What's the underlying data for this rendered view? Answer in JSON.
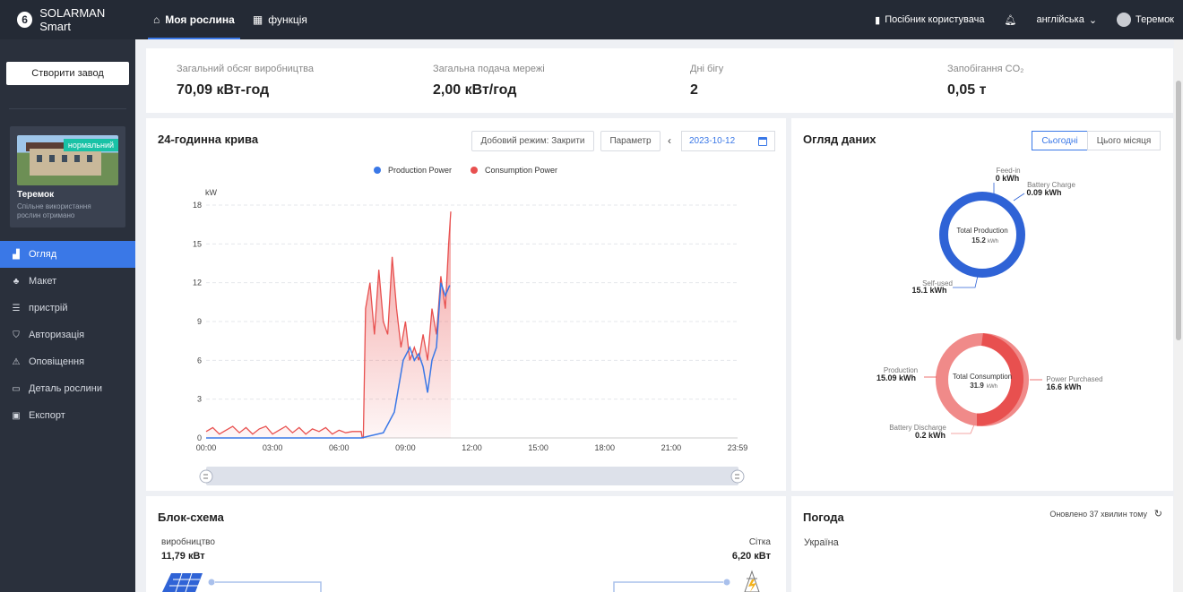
{
  "app": {
    "logo_text": "SOLARMAN Smart"
  },
  "topnav": {
    "tabs": [
      {
        "label": "Моя рослина",
        "icon": "home-icon"
      },
      {
        "label": "функція",
        "icon": "grid-icon"
      }
    ],
    "guide": "Посібник користувача",
    "language": "англійська",
    "user": "Теремок"
  },
  "sidebar": {
    "create_button": "Створити завод",
    "plant": {
      "status": "нормальний",
      "name": "Теремок",
      "subtitle": "Спільне використання рослин отримано"
    },
    "menu": [
      {
        "label": "Огляд",
        "icon": "chart-icon",
        "active": true
      },
      {
        "label": "Макет",
        "icon": "layout-icon",
        "active": false
      },
      {
        "label": "пристрій",
        "icon": "device-icon",
        "active": false
      },
      {
        "label": "Авторизація",
        "icon": "shield-icon",
        "active": false
      },
      {
        "label": "Оповіщення",
        "icon": "alarm-icon",
        "active": false
      },
      {
        "label": "Деталь рослини",
        "icon": "folder-icon",
        "active": false
      },
      {
        "label": "Експорт",
        "icon": "export-icon",
        "active": false
      }
    ]
  },
  "stats": [
    {
      "label": "Загальний обсяг виробництва",
      "value": "70,09 кВт-год"
    },
    {
      "label": "Загальна подача мережі",
      "value": "2,00 кВт/год"
    },
    {
      "label": "Дні бігу",
      "value": "2"
    },
    {
      "label": "Запобігання CO₂",
      "value": "0,05 т"
    }
  ],
  "curve": {
    "title": "24-годинна крива",
    "mode_button": "Добовий режим: Закрити",
    "param_button": "Параметр",
    "date": "2023-10-12"
  },
  "chart_data": {
    "type": "line",
    "ylabel": "kW",
    "ylim": [
      0,
      18
    ],
    "yticks": [
      0,
      3,
      6,
      9,
      12,
      15,
      18
    ],
    "xticks": [
      "00:00",
      "03:00",
      "06:00",
      "09:00",
      "12:00",
      "15:00",
      "18:00",
      "21:00",
      "23:59"
    ],
    "legend_position": "top-center",
    "series": [
      {
        "name": "Production Power",
        "color": "#3a78e7",
        "points": [
          [
            0,
            0
          ],
          [
            7,
            0
          ],
          [
            8,
            0.4
          ],
          [
            8.5,
            2
          ],
          [
            8.9,
            6
          ],
          [
            9.2,
            7
          ],
          [
            9.4,
            6
          ],
          [
            9.6,
            6.5
          ],
          [
            9.8,
            5.5
          ],
          [
            10,
            3.5
          ],
          [
            10.2,
            6
          ],
          [
            10.4,
            7
          ],
          [
            10.6,
            12
          ],
          [
            10.8,
            11
          ],
          [
            11,
            11.8
          ]
        ]
      },
      {
        "name": "Consumption Power",
        "color": "#e8504f",
        "points": [
          [
            0,
            0.5
          ],
          [
            0.3,
            0.8
          ],
          [
            0.6,
            0.3
          ],
          [
            0.9,
            0.6
          ],
          [
            1.2,
            0.9
          ],
          [
            1.5,
            0.4
          ],
          [
            1.8,
            0.8
          ],
          [
            2.1,
            0.3
          ],
          [
            2.4,
            0.7
          ],
          [
            2.7,
            0.9
          ],
          [
            3,
            0.3
          ],
          [
            3.3,
            0.6
          ],
          [
            3.6,
            0.9
          ],
          [
            3.9,
            0.4
          ],
          [
            4.2,
            0.8
          ],
          [
            4.5,
            0.3
          ],
          [
            4.8,
            0.7
          ],
          [
            5.1,
            0.5
          ],
          [
            5.4,
            0.8
          ],
          [
            5.7,
            0.3
          ],
          [
            6,
            0.6
          ],
          [
            6.3,
            0.4
          ],
          [
            6.6,
            0.5
          ],
          [
            7,
            0.5
          ],
          [
            7.05,
            0
          ],
          [
            7.1,
            0
          ],
          [
            7.2,
            10
          ],
          [
            7.4,
            12
          ],
          [
            7.6,
            8
          ],
          [
            7.8,
            13
          ],
          [
            8,
            9
          ],
          [
            8.2,
            8
          ],
          [
            8.4,
            14
          ],
          [
            8.6,
            10
          ],
          [
            8.8,
            7
          ],
          [
            9,
            9
          ],
          [
            9.2,
            6
          ],
          [
            9.4,
            7
          ],
          [
            9.6,
            6
          ],
          [
            9.8,
            8
          ],
          [
            10,
            6
          ],
          [
            10.2,
            10
          ],
          [
            10.4,
            8
          ],
          [
            10.6,
            12.5
          ],
          [
            10.8,
            10
          ],
          [
            10.95,
            15
          ],
          [
            11.05,
            17.5
          ]
        ]
      }
    ]
  },
  "overview": {
    "title": "Огляд даних",
    "seg_today": "Сьогодні",
    "seg_month": "Цього місяця",
    "production": {
      "center_label": "Total Production",
      "center_value": "15.2",
      "unit": "kWh",
      "feed_in_label": "Feed-in",
      "feed_in_value": "0 kWh",
      "battery_charge_label": "Battery Charge",
      "battery_charge_value": "0.09 kWh",
      "self_used_label": "Self-used",
      "self_used_value": "15.1 kWh"
    },
    "consumption": {
      "center_label": "Total Consumption",
      "center_value": "31.9",
      "unit": "kWh",
      "production_label": "Production",
      "production_value": "15.09 kWh",
      "purchased_label": "Power Purchased",
      "purchased_value": "16.6 kWh",
      "battery_discharge_label": "Battery Discharge",
      "battery_discharge_value": "0.2 kWh"
    },
    "colors": {
      "production": "#2f63d6",
      "consumption": "#e8504f",
      "consumption_light": "#f08a89"
    }
  },
  "blocks": {
    "title": "Блок-схема",
    "production_label": "виробництво",
    "production_value": "11,79 кВт",
    "grid_label": "Сітка",
    "grid_value": "6,20 кВт"
  },
  "weather": {
    "title": "Погода",
    "updated": "Оновлено 37 хвилин тому",
    "location": "Україна"
  }
}
